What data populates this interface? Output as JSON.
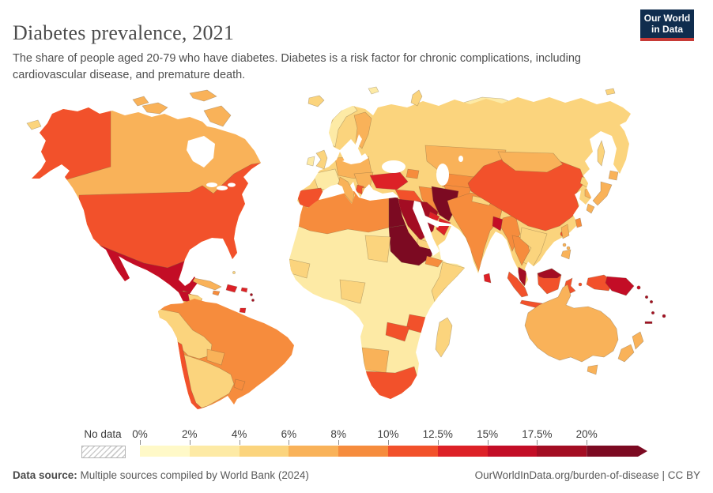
{
  "header": {
    "title": "Diabetes prevalence, 2021",
    "subtitle": "The share of people aged 20-79 who have diabetes. Diabetes is a risk factor for chronic complications, including cardiovascular disease, and premature death.",
    "logo_line1": "Our World",
    "logo_line2": "in Data"
  },
  "legend": {
    "no_data_label": "No data",
    "ticks": [
      "0%",
      "2%",
      "4%",
      "6%",
      "8%",
      "10%",
      "12.5%",
      "15%",
      "17.5%",
      "20%"
    ]
  },
  "footer": {
    "source_label": "Data source:",
    "source_text": " Multiple sources compiled by World Bank (2024)",
    "right_text": "OurWorldInData.org/burden-of-disease | CC BY"
  },
  "colors": {
    "logo_bg": "#102d4e",
    "logo_bar": "#c73a36",
    "title_text": "#4c4c4c",
    "body_text": "#4f4f4f"
  },
  "chart_data": {
    "type": "choropleth",
    "title": "Diabetes prevalence, 2021",
    "unit": "% of people aged 20-79 with diabetes",
    "year": 2021,
    "legend_bins": [
      "0-2%",
      "2-4%",
      "4-6%",
      "6-8%",
      "8-10%",
      "10-12.5%",
      "12.5-15%",
      "15-17.5%",
      "17.5-20%",
      ">20%"
    ],
    "palette": [
      "#fff9c8",
      "#fdeaa5",
      "#fbd47d",
      "#f9b259",
      "#f68c3d",
      "#f2512b",
      "#dd2127",
      "#c30d26",
      "#a30d23",
      "#7c0a22"
    ],
    "no_data_pattern": "gray-diagonal-hatch",
    "region_bins": {
      "greenland": 1,
      "iceland": 2,
      "canada": 3,
      "alaska": 5,
      "usa": 5,
      "mexico": 7,
      "guatemala": 7,
      "honduras": 2,
      "nicaragua": 4,
      "costa-rica-panama": 4,
      "cuba": 3,
      "hispaniola": 6,
      "jamaica": 4,
      "puerto-rico": 6,
      "lesser-antilles": 8,
      "trinidad": 6,
      "bahamas": 2,
      "arctic-island": 3,
      "south-america": 4,
      "ecuador-peru-bolivia": 2,
      "paraguay": 3,
      "argentina": 2,
      "chile": 5,
      "uruguay": 4,
      "africa": 1,
      "north-africa": 4,
      "egypt": 9,
      "sudan": 9,
      "chad": 2,
      "senegal-mali": 2,
      "nigeria": 2,
      "eritrea": 4,
      "somalia": 2,
      "tanzania": 5,
      "zambia": 5,
      "namibia": 3,
      "south-africa": 5,
      "madagascar": 2,
      "eurasia": 2,
      "norway": 1,
      "finland": 3,
      "uk": 2,
      "ireland": 1,
      "france": 1,
      "spain-portugal": 5,
      "central-europe": 3,
      "italy": 3,
      "balkans": 3,
      "albania": 5,
      "greece": 3,
      "turkey": 6,
      "caucasus": 4,
      "syria-iraq": 5,
      "iran": 4,
      "saudi-arabia": 8,
      "yemen": 2,
      "oman": 6,
      "gulf-states": 6,
      "kazakhstan": 3,
      "central-asia": 4,
      "afghanistan": 4,
      "pakistan": 9,
      "india": 4,
      "nepal-bhutan": 2,
      "bangladesh": 7,
      "myanmar": 4,
      "thailand": 4,
      "vietnam-laos": 2,
      "malaysia": 8,
      "china": 5,
      "mongolia": 3,
      "north-korea": 2,
      "south-korea": 3,
      "japan": 3,
      "sakhalin": 2,
      "taiwan": 4,
      "hainan": 5,
      "sri-lanka": 6,
      "philippines": 3,
      "sumatra": 5,
      "java": 5,
      "borneo-indonesia": 5,
      "borneo-malaysia": 8,
      "sulawesi": 5,
      "lesser-sunda": 5,
      "west-papua": 5,
      "papua-new-guinea": 7,
      "new-britain": 7,
      "solomon-islands": 8,
      "vanuatu": 8,
      "fiji": 8,
      "new-caledonia": 8,
      "australia": 3,
      "new-zealand": 3,
      "svalbard": 1,
      "novaya-zemlya": 2,
      "wrangel": 2,
      "chukotka-west": 2
    }
  }
}
